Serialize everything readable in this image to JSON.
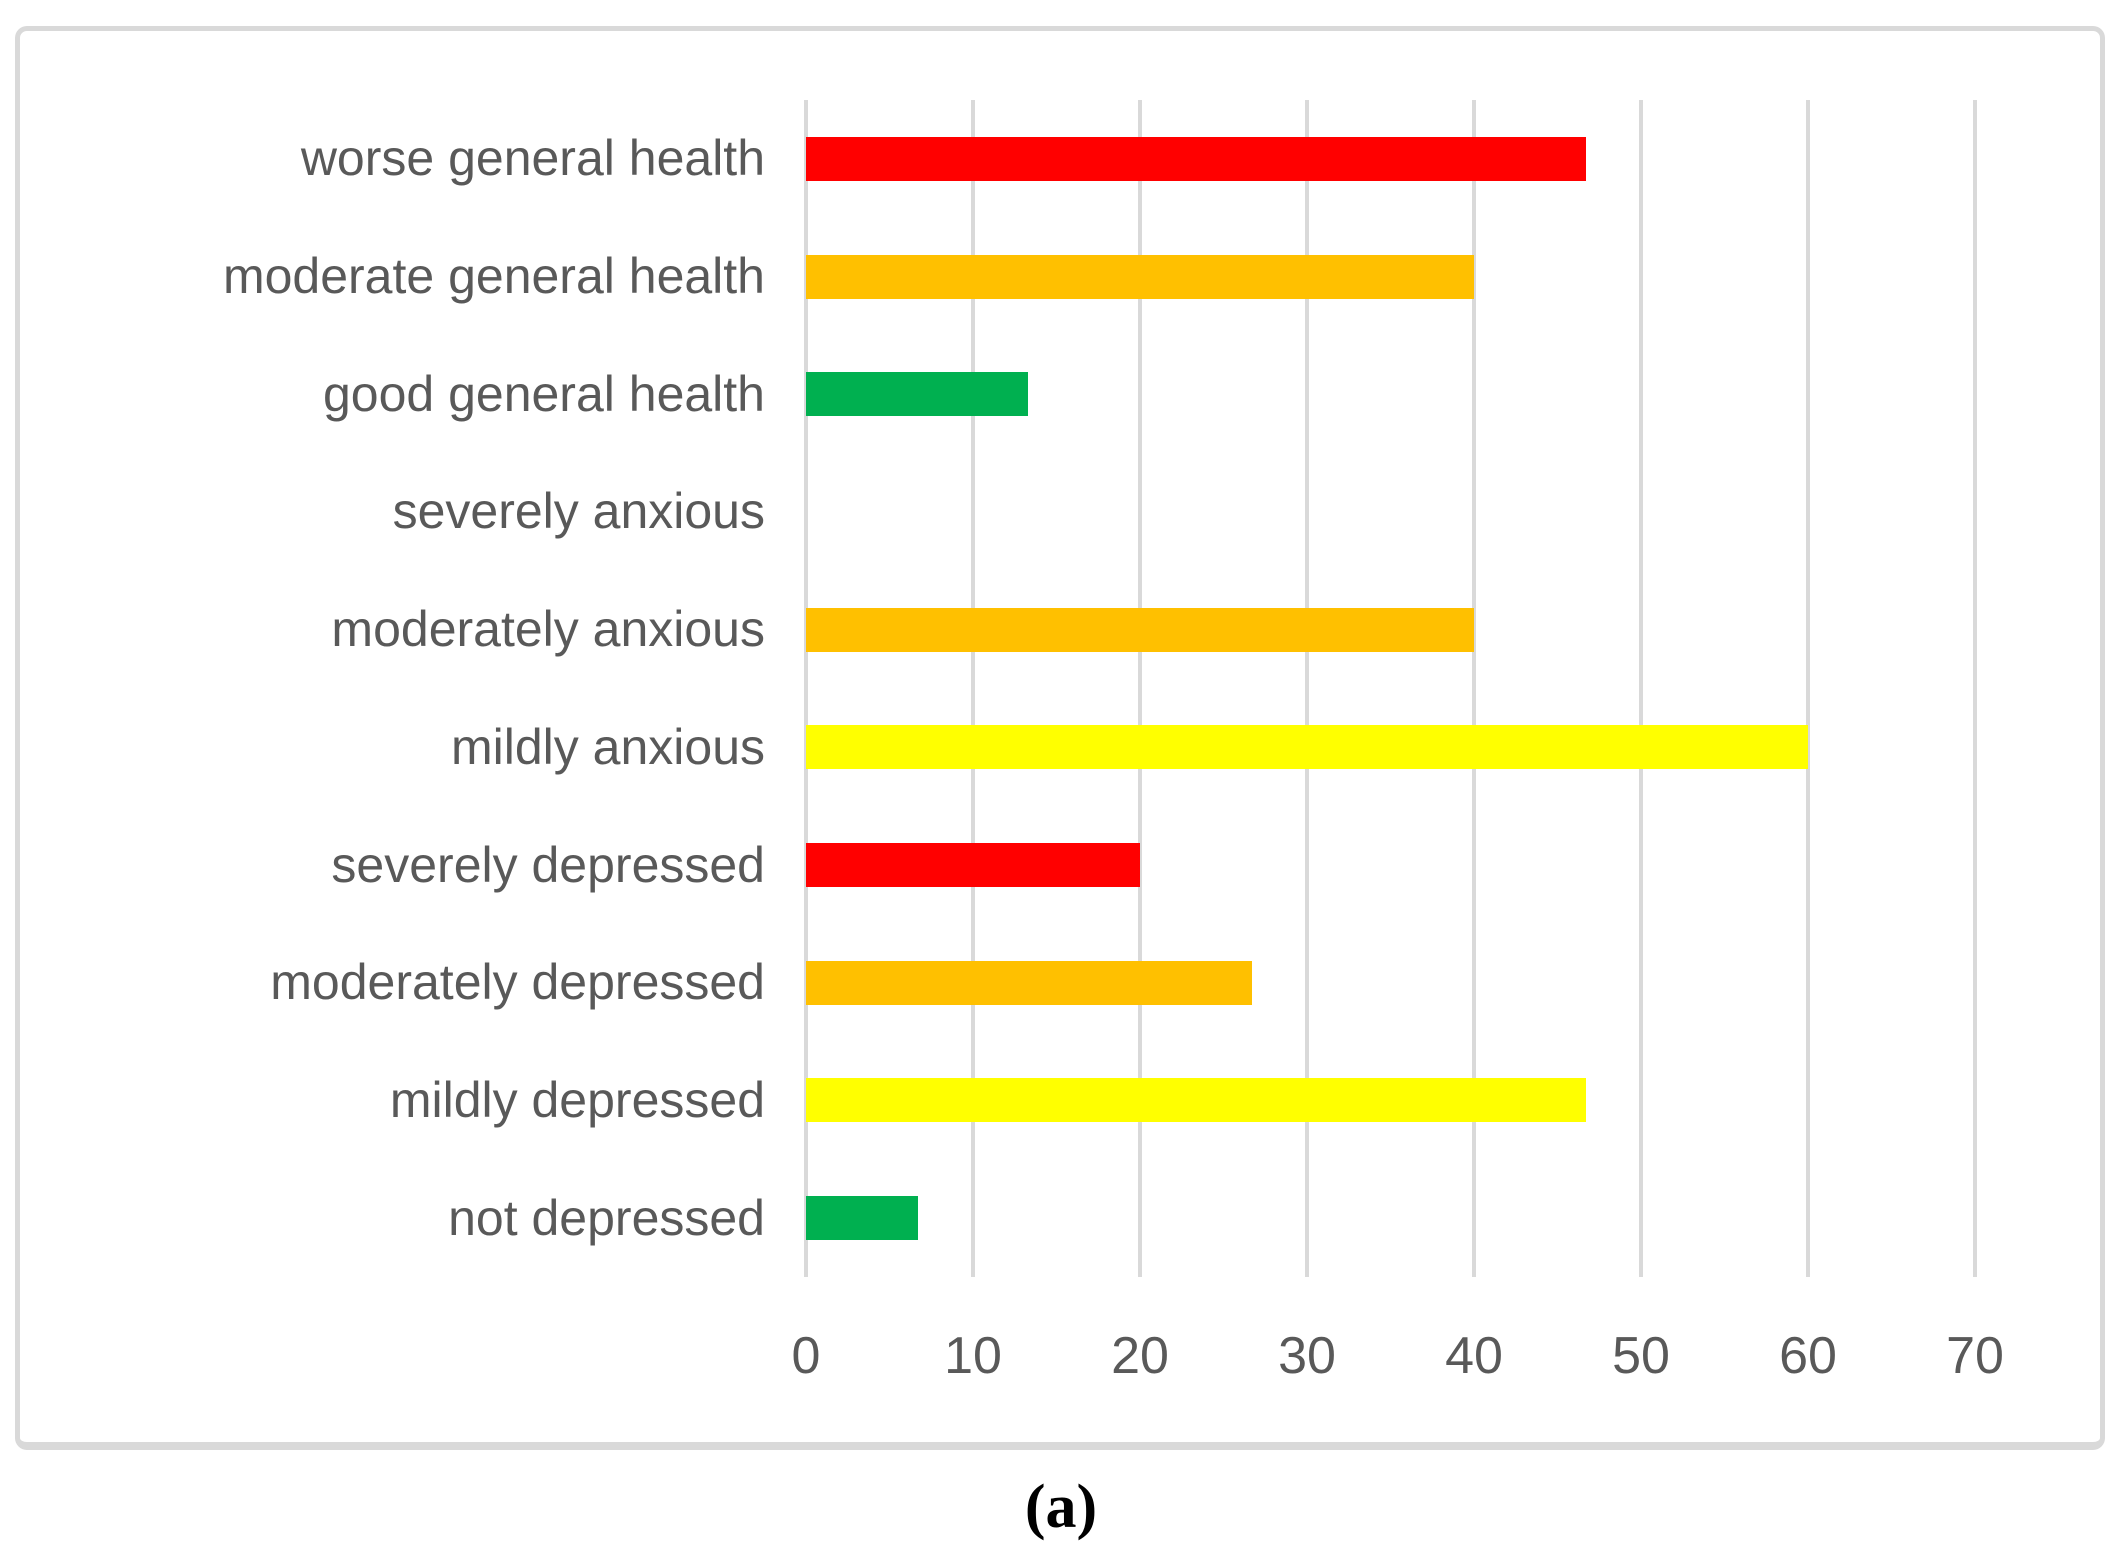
{
  "figure": {
    "caption": "(a)"
  },
  "colors": {
    "text": "#595959",
    "gridline": "#d9d9d9",
    "frame_border": "#d9d9d9",
    "red": "#ff0000",
    "orange": "#ffc000",
    "yellow": "#ffff00",
    "green": "#00b050"
  },
  "chart_data": {
    "type": "bar",
    "orientation": "horizontal",
    "title": "",
    "xlabel": "",
    "ylabel": "",
    "xlim": [
      0,
      70
    ],
    "x_ticks": [
      0,
      10,
      20,
      30,
      40,
      50,
      60,
      70
    ],
    "grid": true,
    "legend": false,
    "categories": [
      "worse general health",
      "moderate general health",
      "good general health",
      "severely anxious",
      "moderately anxious",
      "mildly anxious",
      "severely depressed",
      "moderately depressed",
      "mildly depressed",
      "not depressed"
    ],
    "values": [
      46.7,
      40,
      13.3,
      0,
      40,
      60,
      20,
      26.7,
      46.7,
      6.7
    ],
    "bar_colors": [
      "#ff0000",
      "#ffc000",
      "#00b050",
      "none",
      "#ffc000",
      "#ffff00",
      "#ff0000",
      "#ffc000",
      "#ffff00",
      "#00b050"
    ]
  }
}
